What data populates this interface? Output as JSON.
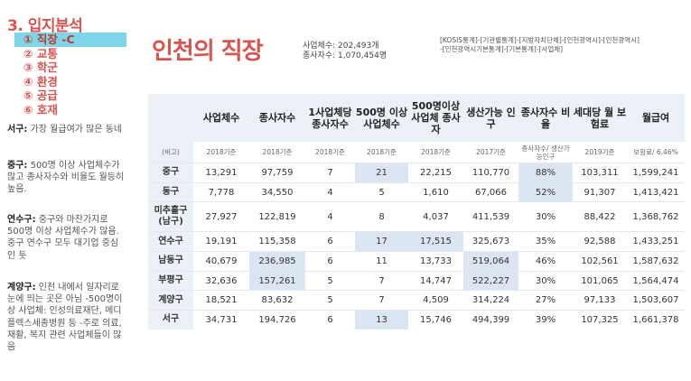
{
  "sidebar": {
    "section_title": "3. 입지분석",
    "nav": [
      {
        "label": "① 직장 -C",
        "active": true
      },
      {
        "label": "② 교통",
        "active": false
      },
      {
        "label": "③ 학군",
        "active": false
      },
      {
        "label": "④ 환경",
        "active": false
      },
      {
        "label": "⑤ 공급",
        "active": false
      },
      {
        "label": "⑥ 호재",
        "active": false
      }
    ],
    "notes": [
      {
        "head": "서구:",
        "body": " 가장 월급여가 많은 동네"
      },
      {
        "head": "중구:",
        "body": " 500명 이상 사업체수가 많고 종사자수와 비율도 월등히 높음."
      },
      {
        "head": "연수구:",
        "body": " 중구와 마찬가지로 500명 이상 사업체수가 많음. 중구 연수구 모두 대기업 중심인 듯"
      },
      {
        "head": "계양구:",
        "body": " 인천 내에서 일자리로 눈에 띄는 곳은 아님 -500명이상 사업체: 인성의료재단, 메디플렉스세종병원 등 -주로 의료, 재활, 복지 관련 사업체들이 많음"
      }
    ]
  },
  "header": {
    "title": "인천의 직장",
    "stats": [
      "사업체수: 202,493개",
      "종사자수: 1,070,454명"
    ],
    "source": [
      "[KOSIS통계]-[기관별통계]-[지방자치단체]-[인천광역시]-[인천광역시]",
      "-[인천광역시기본통계]-[기본통계]-[사업체]"
    ]
  },
  "table": {
    "columns": [
      "",
      "사업체수",
      "종사자수",
      "1사업체당 종사자수",
      "500명 이상 사업체수",
      "500명이상 사업체 종사자",
      "생산가능 인구",
      "종사자수 비율",
      "세대당 월 보험료",
      "월급여"
    ],
    "subheader": [
      "(비고)",
      "2018기준",
      "2018기준",
      "2018기준",
      "2018기준",
      "2018기준",
      "2017기준",
      "종사자수/ 생산가능인구",
      "2019기준",
      "보험료/ 6.46%"
    ],
    "rows": [
      {
        "name": "중구",
        "values": [
          "13,291",
          "97,759",
          "7",
          "21",
          "22,215",
          "110,770",
          "88%",
          "103,311",
          "1,599,241"
        ],
        "hl": [
          3,
          6
        ]
      },
      {
        "name": "동구",
        "values": [
          "7,778",
          "34,550",
          "4",
          "5",
          "1,610",
          "67,066",
          "52%",
          "91,307",
          "1,413,421"
        ],
        "hl": [
          6
        ]
      },
      {
        "name": "미추홀구 (남구)",
        "values": [
          "27,927",
          "122,819",
          "4",
          "8",
          "4,037",
          "411,539",
          "30%",
          "88,422",
          "1,368,762"
        ],
        "hl": [],
        "tall": true
      },
      {
        "name": "연수구",
        "values": [
          "19,191",
          "115,358",
          "6",
          "17",
          "17,515",
          "325,673",
          "35%",
          "92,588",
          "1,433,251"
        ],
        "hl": [
          3,
          4
        ]
      },
      {
        "name": "남동구",
        "values": [
          "40,679",
          "236,985",
          "6",
          "11",
          "13,733",
          "519,064",
          "46%",
          "102,561",
          "1,587,632"
        ],
        "hl": [
          1,
          5
        ]
      },
      {
        "name": "부평구",
        "values": [
          "32,636",
          "157,261",
          "5",
          "7",
          "14,747",
          "522,227",
          "30%",
          "101,065",
          "1,564,474"
        ],
        "hl": [
          1,
          5
        ]
      },
      {
        "name": "계양구",
        "values": [
          "18,521",
          "83,632",
          "5",
          "7",
          "4,509",
          "314,224",
          "27%",
          "97,133",
          "1,503,607"
        ],
        "hl": []
      },
      {
        "name": "서구",
        "values": [
          "34,731",
          "194,726",
          "6",
          "13",
          "15,746",
          "494,399",
          "39%",
          "107,325",
          "1,661,378"
        ],
        "hl": [
          3
        ]
      }
    ]
  }
}
